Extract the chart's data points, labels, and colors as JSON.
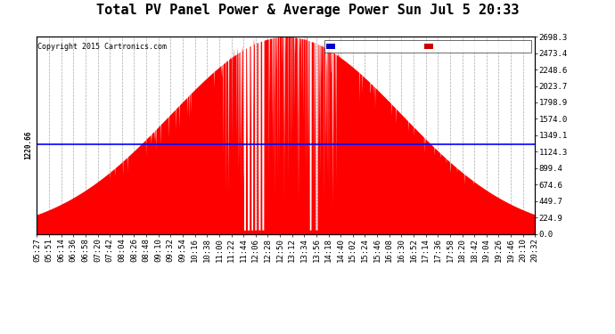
{
  "title": "Total PV Panel Power & Average Power Sun Jul 5 20:33",
  "copyright": "Copyright 2015 Cartronics.com",
  "avg_line_value": 1220.66,
  "ymax": 2698.3,
  "yticks": [
    0.0,
    224.9,
    449.7,
    674.6,
    899.4,
    1124.3,
    1349.1,
    1574.0,
    1798.9,
    2023.7,
    2248.6,
    2473.4,
    2698.3
  ],
  "ytick_labels": [
    "0.0",
    "224.9",
    "449.7",
    "674.6",
    "899.4",
    "1124.3",
    "1349.1",
    "1574.0",
    "1798.9",
    "2023.7",
    "2248.6",
    "2473.4",
    "2698.3"
  ],
  "avg_label": "1220.66",
  "pv_color": "#FF0000",
  "avg_color": "#0000FF",
  "bg_color": "#FFFFFF",
  "grid_color": "#AAAAAA",
  "legend_avg_bg": "#0000CC",
  "legend_pv_bg": "#CC0000",
  "xtick_labels": [
    "05:27",
    "05:51",
    "06:14",
    "06:36",
    "06:58",
    "07:20",
    "07:42",
    "08:04",
    "08:26",
    "08:48",
    "09:10",
    "09:32",
    "09:54",
    "10:16",
    "10:38",
    "11:00",
    "11:22",
    "11:44",
    "12:06",
    "12:28",
    "12:50",
    "13:12",
    "13:34",
    "13:56",
    "14:18",
    "14:40",
    "15:02",
    "15:24",
    "15:46",
    "16:08",
    "16:30",
    "16:52",
    "17:14",
    "17:36",
    "17:58",
    "18:20",
    "18:42",
    "19:04",
    "19:26",
    "19:46",
    "20:10",
    "20:32"
  ],
  "title_fontsize": 11,
  "tick_fontsize": 6.5,
  "copyright_fontsize": 6
}
